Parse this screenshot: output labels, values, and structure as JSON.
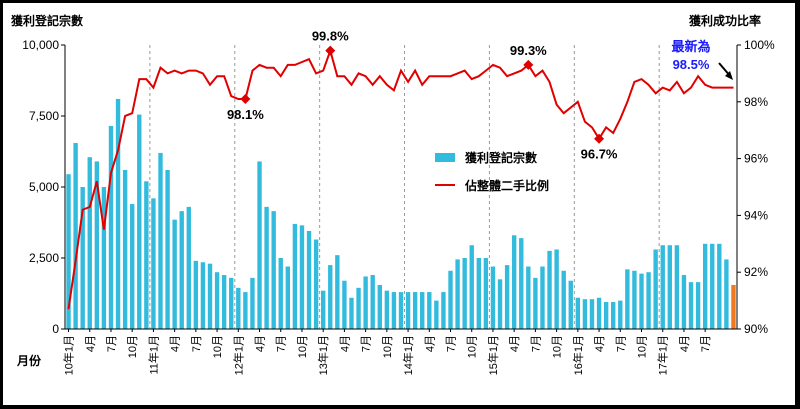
{
  "chart_data": {
    "type": "bar+line",
    "left_axis_title": "獲利登記宗數",
    "right_axis_title": "獲利成功比率",
    "xlabel": "月份",
    "left_ylim": [
      0,
      10000
    ],
    "right_ylim": [
      90,
      100
    ],
    "left_ticks": [
      "10,000",
      "7,500",
      "5,000",
      "2,500",
      "0"
    ],
    "right_ticks": [
      "100%",
      "98%",
      "96%",
      "94%",
      "92%",
      "90%"
    ],
    "x_tick_labels": [
      "10年1月",
      "4月",
      "7月",
      "10月",
      "11年1月",
      "4月",
      "7月",
      "10月",
      "12年1月",
      "4月",
      "7月",
      "10月",
      "13年1月",
      "4月",
      "7月",
      "10月",
      "14年1月",
      "4月",
      "7月",
      "10月",
      "15年1月",
      "4月",
      "7月",
      "10月",
      "16年1月",
      "4月",
      "7月",
      "10月",
      "17年1月",
      "4月",
      "7月"
    ],
    "series": [
      {
        "name": "獲利登記宗數",
        "kind": "bar",
        "color": "#33bbdd",
        "values": [
          5450,
          6550,
          5000,
          6050,
          5900,
          5000,
          7150,
          8100,
          5600,
          4400,
          7550,
          5200,
          4600,
          6200,
          5600,
          3850,
          4150,
          4300,
          2400,
          2350,
          2300,
          2000,
          1900,
          1800,
          1450,
          1300,
          1800,
          5900,
          4300,
          4150,
          2500,
          2200,
          3700,
          3650,
          3450,
          3150,
          1350,
          2250,
          2600,
          1700,
          1100,
          1450,
          1850,
          1900,
          1550,
          1350,
          1300,
          1300,
          1300,
          1300,
          1300,
          1300,
          1000,
          1300,
          2050,
          2450,
          2500,
          2950,
          2500,
          2500,
          2200,
          1750,
          2250,
          3300,
          3200,
          2200,
          1800,
          2200,
          2750,
          2800,
          2050,
          1700,
          1100,
          1050,
          1050,
          1100,
          950,
          950,
          1000,
          2100,
          2050,
          1950,
          2000,
          2800,
          2950,
          2950,
          2950,
          1900,
          1650,
          1650,
          3000,
          3000,
          3000,
          2450,
          1550
        ],
        "last_bar_color": "#f07820"
      },
      {
        "name": "佔整體二手比例",
        "kind": "line",
        "color": "#e00000",
        "values": [
          90.7,
          92.4,
          94.2,
          94.3,
          95.2,
          93.5,
          95.5,
          96.3,
          97.5,
          97.6,
          98.8,
          98.8,
          98.5,
          99.2,
          99.0,
          99.1,
          99.0,
          99.1,
          99.1,
          99.0,
          98.6,
          98.9,
          98.9,
          98.2,
          98.1,
          98.1,
          99.1,
          99.3,
          99.2,
          99.2,
          98.9,
          99.3,
          99.3,
          99.4,
          99.5,
          99.0,
          99.1,
          99.8,
          98.9,
          98.9,
          98.6,
          99.0,
          98.9,
          98.6,
          98.9,
          98.6,
          98.4,
          99.1,
          98.7,
          99.1,
          98.6,
          98.9,
          98.9,
          98.9,
          98.9,
          99.0,
          99.1,
          98.8,
          98.9,
          99.1,
          99.3,
          99.2,
          98.9,
          99.0,
          99.1,
          99.3,
          98.9,
          99.1,
          98.7,
          97.9,
          97.6,
          97.8,
          98.0,
          97.3,
          97.1,
          96.7,
          97.1,
          96.9,
          97.4,
          98.0,
          98.7,
          98.8,
          98.6,
          98.3,
          98.5,
          98.4,
          98.7,
          98.3,
          98.5,
          98.9,
          98.6,
          98.5,
          98.5,
          98.5,
          98.5
        ]
      }
    ],
    "annotations": [
      {
        "text": "98.1%",
        "index": 25,
        "value": 98.1
      },
      {
        "text": "99.8%",
        "index": 37,
        "value": 99.8
      },
      {
        "text": "99.3%",
        "index": 65,
        "value": 99.3
      },
      {
        "text": "96.7%",
        "index": 75,
        "value": 96.7
      }
    ],
    "latest_note": {
      "line1": "最新為",
      "line2": "98.5%",
      "color": "#1a1aff"
    },
    "legend_placement": "center",
    "grid": "vertical dashed at each January"
  }
}
